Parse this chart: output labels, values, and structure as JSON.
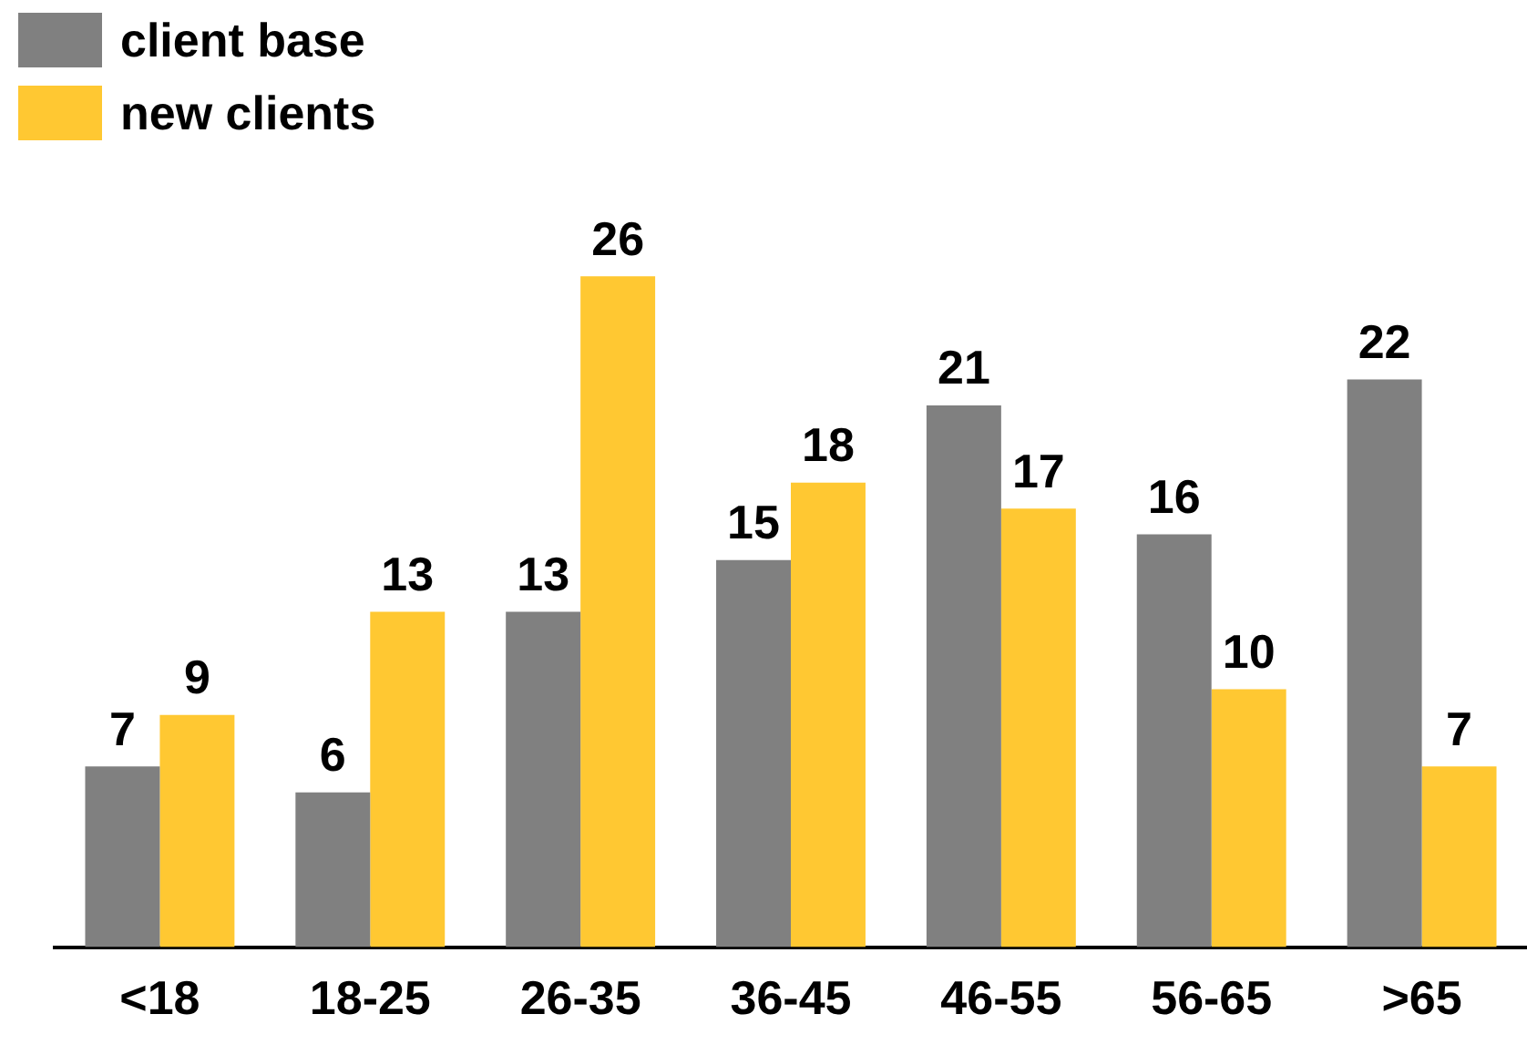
{
  "chart_data": {
    "type": "bar",
    "categories": [
      "<18",
      "18-25",
      "26-35",
      "36-45",
      "46-55",
      "56-65",
      ">65"
    ],
    "series": [
      {
        "name": "client base",
        "color": "#808080",
        "values": [
          7,
          6,
          13,
          15,
          21,
          16,
          22
        ]
      },
      {
        "name": "new clients",
        "color": "#ffc832",
        "values": [
          9,
          13,
          26,
          18,
          17,
          10,
          7
        ]
      }
    ],
    "tick_labels": "x",
    "data_labels": true,
    "grid": false,
    "legend": "top left"
  }
}
